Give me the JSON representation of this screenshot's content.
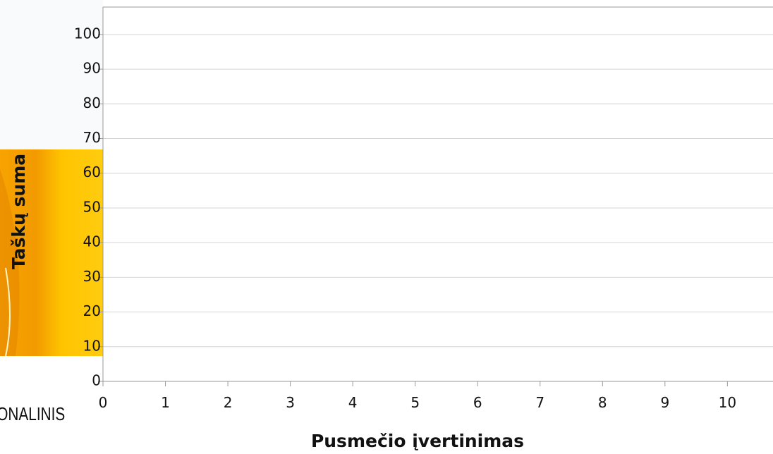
{
  "chart_data": {
    "type": "scatter",
    "x_label": "Pusmečio įvertinimas",
    "y_label": "Taškų suma",
    "xlim": [
      0,
      10.73
    ],
    "ylim": [
      0,
      107.9
    ],
    "xticks": [
      0,
      1,
      2,
      3,
      4,
      5,
      6,
      7,
      8,
      9,
      10
    ],
    "yticks": [
      0,
      10,
      20,
      30,
      40,
      50,
      60,
      70,
      80,
      90,
      100
    ],
    "grid": true
  },
  "logo_text": "ONALINIS"
}
